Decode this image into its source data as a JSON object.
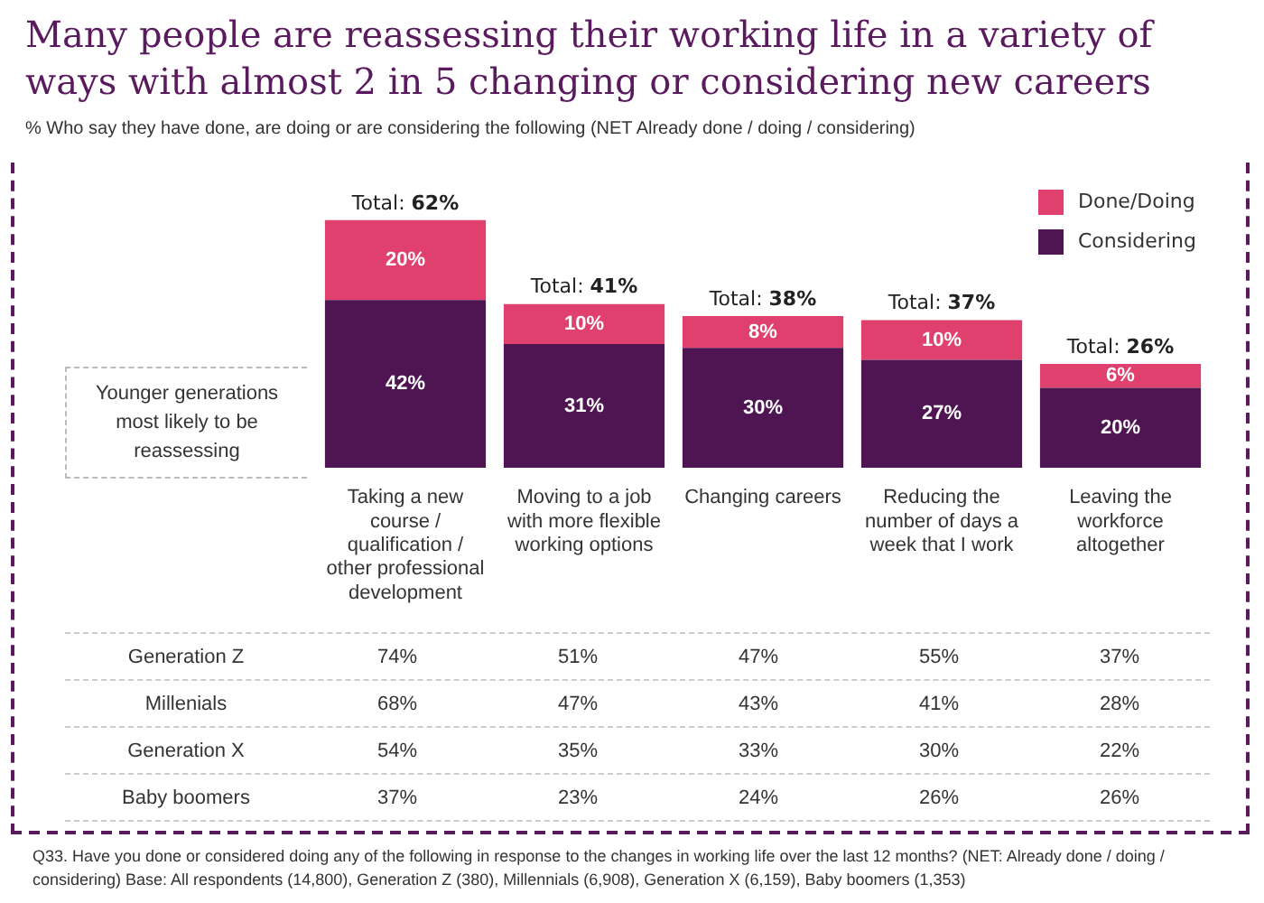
{
  "chart_data": [
    {
      "type": "bar",
      "title": "Many people are reassessing their working life in a variety of ways with almost 2 in 5 changing or considering new careers",
      "subtitle": "% Who say they have done, are doing or are considering the following (NET Already done / doing / considering)",
      "categories": [
        "Taking a new course / qualification / other professional development",
        "Moving to a job with more flexible working options",
        "Changing careers",
        "Reducing the number of days a week that I work",
        "Leaving the workforce altogether"
      ],
      "series": [
        {
          "name": "Considering",
          "color": "#4f1552",
          "values": [
            42,
            31,
            30,
            27,
            20
          ],
          "value_labels": [
            "42%",
            "31%",
            "30%",
            "27%",
            "20%"
          ]
        },
        {
          "name": "Done/Doing",
          "color": "#e0406e",
          "values": [
            20,
            10,
            8,
            10,
            6
          ],
          "value_labels": [
            "20%",
            "10%",
            "8%",
            "10%",
            "6%"
          ]
        }
      ],
      "stacked": true,
      "totals": [
        "Total: 62%",
        "Total: 41%",
        "Total: 38%",
        "Total: 37%",
        "Total: 26%"
      ],
      "legend": "top right",
      "grid": false,
      "tick_labels": "x",
      "annotations": [
        "Younger generations most likely to be reassessing",
        "Q33. Have you done or considered doing any of the following in response to the changes in working life over the last 12 months? (NET: Already done / doing / considering) Base: All respondents (14,800), Generation Z (380), Millennials (6,908), Generation X (6,159), Baby boomers (1,353)"
      ]
    },
    {
      "type": "heatmap",
      "categories": [
        null,
        null,
        null,
        null,
        null
      ],
      "y_categories": [
        "Generation Z",
        "Millenials",
        "Generation X",
        "Baby boomers"
      ],
      "cells": [
        [
          74,
          51,
          47,
          55,
          37
        ],
        [
          68,
          47,
          43,
          41,
          28
        ],
        [
          54,
          35,
          33,
          30,
          22
        ],
        [
          37,
          23,
          24,
          26,
          26
        ]
      ],
      "cell_labels": [
        [
          "74%",
          "51%",
          "47%",
          "55%",
          "37%"
        ],
        [
          "68%",
          "47%",
          "43%",
          "41%",
          "28%"
        ],
        [
          "54%",
          "35%",
          "33%",
          "30%",
          "22%"
        ],
        [
          "37%",
          "23%",
          "24%",
          "26%",
          "26%"
        ]
      ]
    }
  ]
}
